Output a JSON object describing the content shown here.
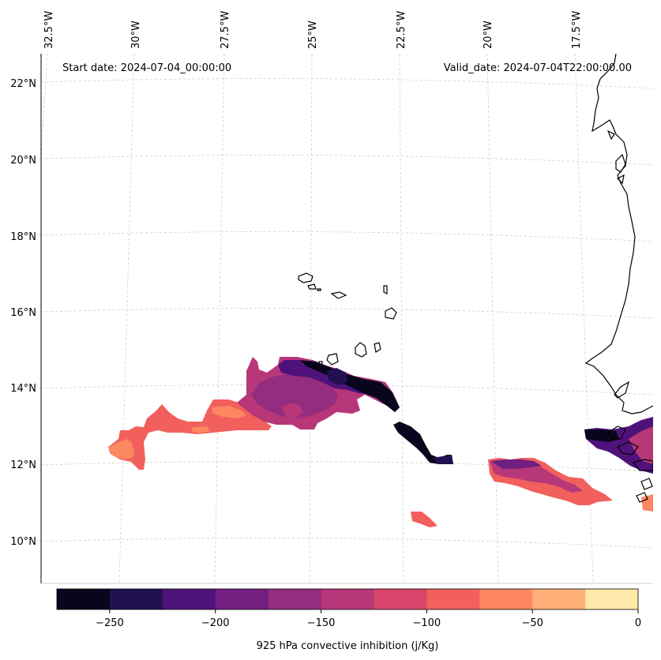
{
  "map": {
    "annotations": {
      "start_date": "Start date: 2024-07-04_00:00:00",
      "valid_date": "Valid_date: 2024-07-04T22:00:00.00"
    },
    "lon_labels": [
      "32.5°W",
      "30°W",
      "27.5°W",
      "25°W",
      "22.5°W",
      "20°W",
      "17.5°W"
    ],
    "lat_labels": [
      "22°N",
      "20°N",
      "18°N",
      "16°N",
      "14°N",
      "12°N",
      "10°N"
    ]
  },
  "colorbar": {
    "label": "925 hPa convective inhibition (j/Kg)",
    "tick_labels": [
      "−250",
      "−200",
      "−150",
      "−100",
      "−50",
      "0"
    ],
    "levels": [
      -275,
      -250,
      -225,
      -200,
      -175,
      -150,
      -125,
      -100,
      -75,
      -50,
      -25,
      0
    ],
    "colors": [
      "#07061c",
      "#221150",
      "#4f127b",
      "#711f81",
      "#942c80",
      "#b73779",
      "#d8456c",
      "#f1605d",
      "#fc8761",
      "#feb078",
      "#fde9a9"
    ]
  }
}
